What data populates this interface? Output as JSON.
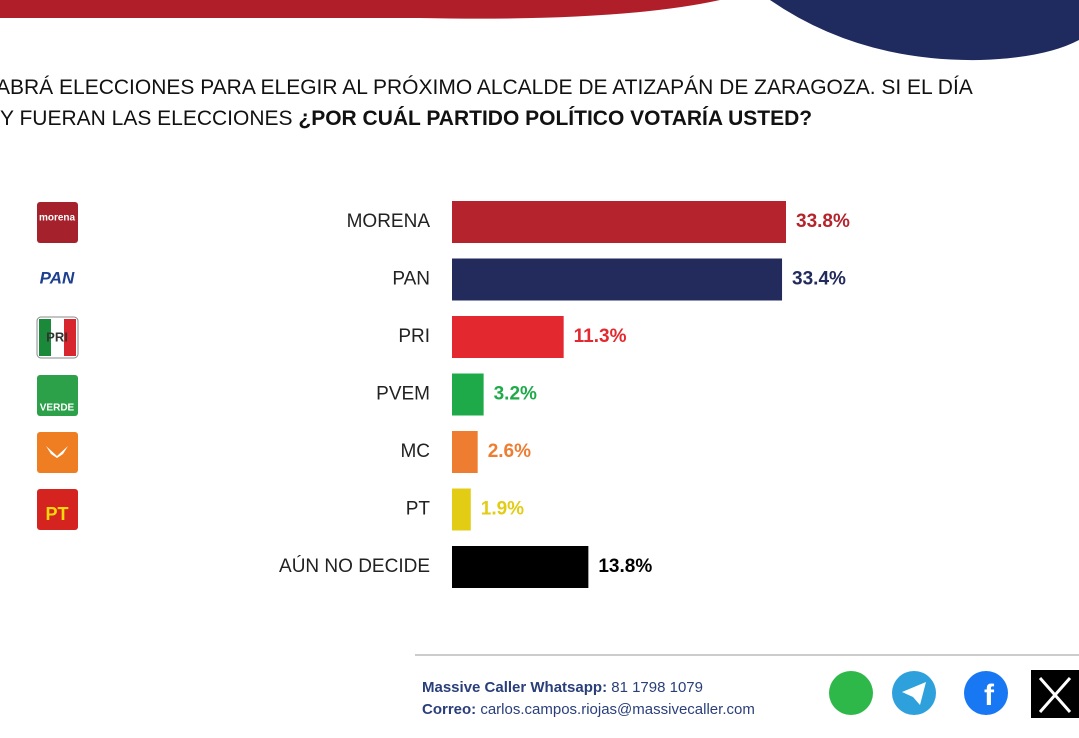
{
  "chart_data": {
    "type": "hbar",
    "title_line1": "ABRÁ ELECCIONES PARA ELEGIR AL PRÓXIMO ALCALDE DE ATIZAPÁN DE ZARAGOZA. SI EL DÍA",
    "title_line2": "Y FUERAN LAS ELECCIONES",
    "title_question": "¿POR CUÁL PARTIDO POLÍTICO VOTARÍA USTED?",
    "categories": [
      "MORENA",
      "PAN",
      "PRI",
      "PVEM",
      "MC",
      "PT",
      "AÚN NO DECIDE"
    ],
    "values": [
      33.8,
      33.4,
      11.3,
      3.2,
      2.6,
      1.9,
      13.8
    ],
    "value_labels": [
      "33.8%",
      "33.4%",
      "11.3%",
      "3.2%",
      "2.6%",
      "1.9%",
      "13.8%"
    ],
    "colors": [
      "#b5242c",
      "#232a5c",
      "#e4282f",
      "#1faa4a",
      "#ee7d31",
      "#e3cc14",
      "#000000"
    ]
  },
  "logos": [
    "morena",
    "PAN",
    "PRI",
    "VERDE",
    "PT"
  ],
  "footer": {
    "whatsapp_label": "Massive Caller Whatsapp:",
    "whatsapp": "81 1798 1079",
    "email_label": "Correo:",
    "email": "carlos.campos.riojas@massivecaller.com"
  }
}
